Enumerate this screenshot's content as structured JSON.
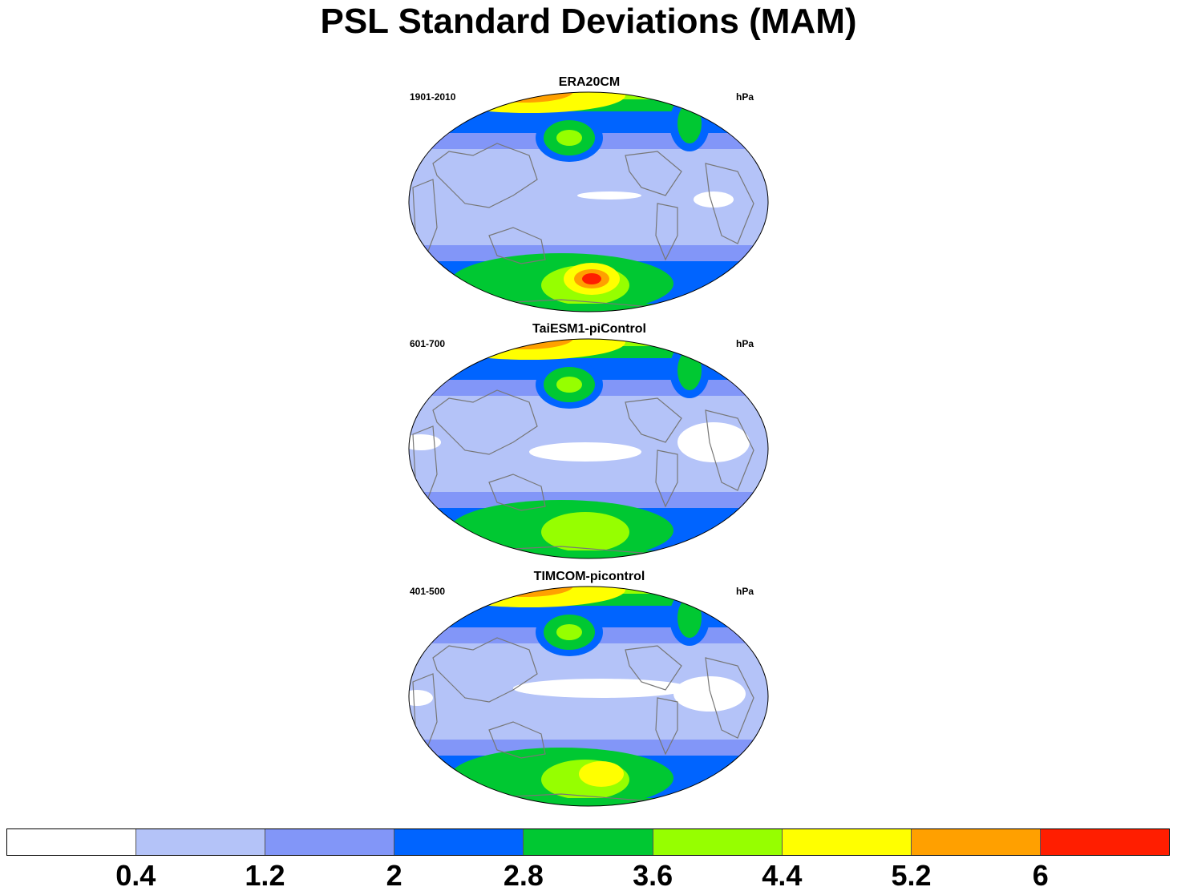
{
  "title": "PSL Standard Deviations (MAM)",
  "panels": [
    {
      "name": "ERA20CM",
      "period": "1901-2010",
      "units": "hPa"
    },
    {
      "name": "TaiESM1-piControl",
      "period": "601-700",
      "units": "hPa"
    },
    {
      "name": "TIMCOM-picontrol",
      "period": "401-500",
      "units": "hPa"
    }
  ],
  "colorbar": {
    "colors": [
      "#ffffff",
      "#b4c3f8",
      "#8296f8",
      "#0064ff",
      "#00c832",
      "#96ff00",
      "#ffff00",
      "#ffa000",
      "#ff1e00"
    ],
    "labels": [
      "0.4",
      "1.2",
      "2",
      "2.8",
      "3.6",
      "4.4",
      "5.2",
      "6"
    ]
  }
}
